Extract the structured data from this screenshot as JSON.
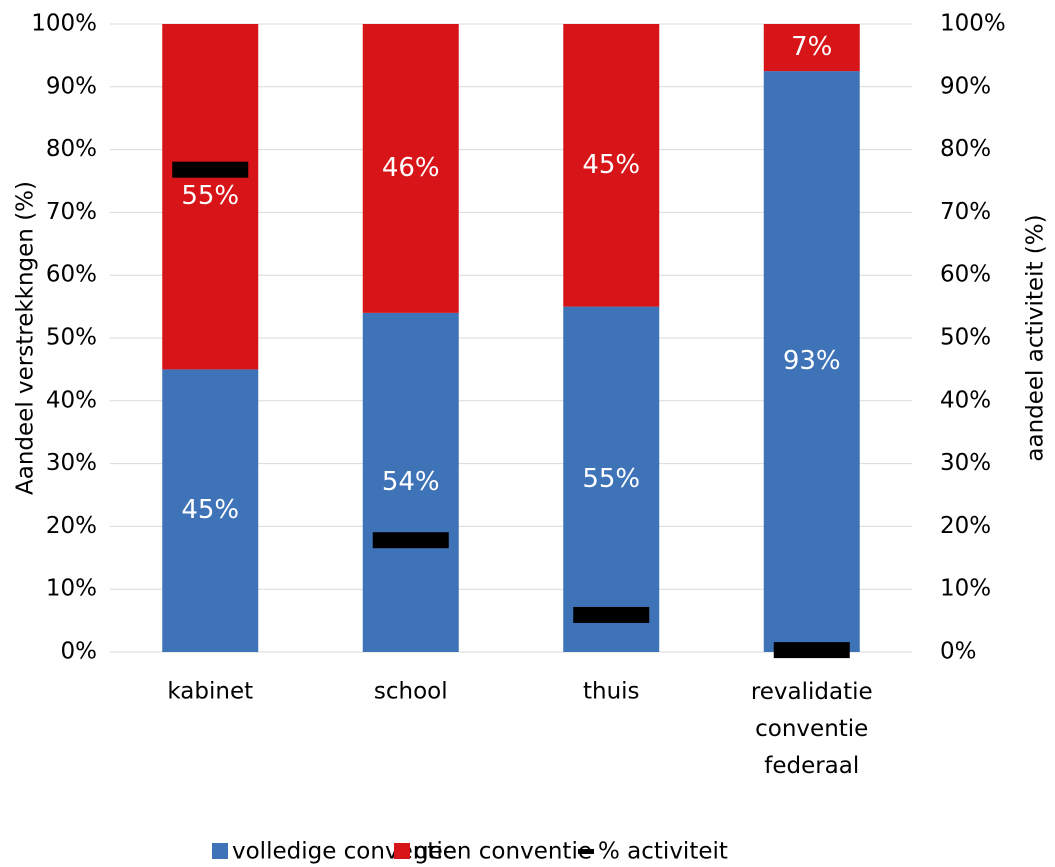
{
  "chart_data": {
    "type": "stacked_bar",
    "categories": [
      "kabinet",
      "school",
      "thuis",
      "revalidatie conventie federaal"
    ],
    "series": [
      {
        "name": "volledige conventie",
        "color": "#3f73b8",
        "values": [
          45,
          54,
          55,
          92.5
        ],
        "value_labels": [
          "45%",
          "54%",
          "55%",
          "93%"
        ]
      },
      {
        "name": "geen conventie",
        "color": "#d71418",
        "values": [
          55,
          46,
          45,
          7.5
        ],
        "value_labels": [
          "55%",
          "46%",
          "45%",
          "7%"
        ]
      },
      {
        "name": "% activiteit",
        "color": "#000000",
        "axis": "y2",
        "values": [
          76.8,
          17.8,
          5.9,
          0.3
        ]
      }
    ],
    "ylabel": "Aandeel verstrekkngen (%)",
    "y2label": "aandeel activiteit  (%)",
    "ylim": [
      0,
      100
    ],
    "yticks": [
      {
        "value": 0,
        "label": "0%"
      },
      {
        "value": 10,
        "label": "10%"
      },
      {
        "value": 20,
        "label": "20%"
      },
      {
        "value": 30,
        "label": "30%"
      },
      {
        "value": 40,
        "label": "40%"
      },
      {
        "value": 50,
        "label": "50%"
      },
      {
        "value": 60,
        "label": "60%"
      },
      {
        "value": 70,
        "label": "70%"
      },
      {
        "value": 80,
        "label": "80%"
      },
      {
        "value": 90,
        "label": "90%"
      },
      {
        "value": 100,
        "label": "100%"
      }
    ],
    "y2lim": [
      0,
      100
    ],
    "y2ticks": [
      {
        "value": 0,
        "label": "0%"
      },
      {
        "value": 10,
        "label": "10%"
      },
      {
        "value": 20,
        "label": "20%"
      },
      {
        "value": 30,
        "label": "30%"
      },
      {
        "value": 40,
        "label": "40%"
      },
      {
        "value": 50,
        "label": "50%"
      },
      {
        "value": 60,
        "label": "60%"
      },
      {
        "value": 70,
        "label": "70%"
      },
      {
        "value": 80,
        "label": "80%"
      },
      {
        "value": 90,
        "label": "90%"
      },
      {
        "value": 100,
        "label": "100%"
      }
    ],
    "grid": true,
    "legend": "bottom"
  }
}
